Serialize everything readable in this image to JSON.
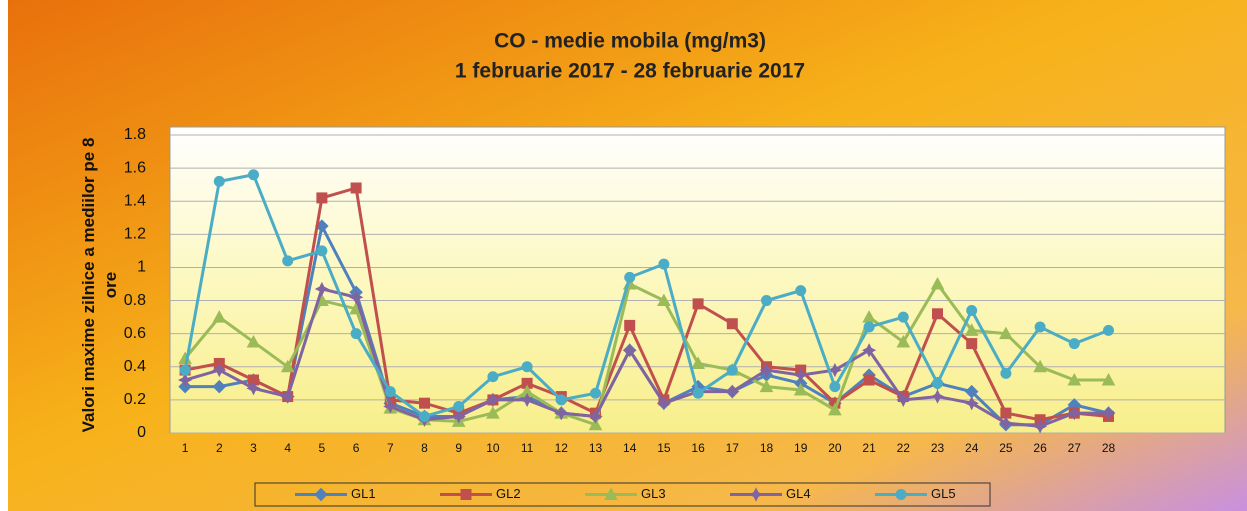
{
  "chart_data": {
    "type": "line",
    "title": "CO - medie mobila (mg/m3)",
    "subtitle": "1 februarie 2017 - 28 februarie 2017",
    "y_label": "Valori maxime zilnice a mediilor pe 8 ore",
    "categories": [
      "1",
      "2",
      "3",
      "4",
      "5",
      "6",
      "7",
      "8",
      "9",
      "10",
      "11",
      "12",
      "13",
      "14",
      "15",
      "16",
      "17",
      "18",
      "19",
      "20",
      "21",
      "22",
      "23",
      "24",
      "25",
      "26",
      "27",
      "28"
    ],
    "series": [
      {
        "name": "GL1",
        "color": "#4f81bd",
        "marker": "diamond",
        "values": [
          0.28,
          0.28,
          0.32,
          0.22,
          1.25,
          0.85,
          0.18,
          0.1,
          0.1,
          0.2,
          0.22,
          0.12,
          0.1,
          0.5,
          0.18,
          0.28,
          0.25,
          0.35,
          0.3,
          0.18,
          0.35,
          0.22,
          0.3,
          0.25,
          0.05,
          0.05,
          0.17,
          0.12
        ]
      },
      {
        "name": "GL2",
        "color": "#c0504d",
        "marker": "square",
        "values": [
          0.38,
          0.42,
          0.32,
          0.22,
          1.42,
          1.48,
          0.2,
          0.18,
          0.12,
          0.2,
          0.3,
          0.22,
          0.12,
          0.65,
          0.2,
          0.78,
          0.66,
          0.4,
          0.38,
          0.18,
          0.32,
          0.22,
          0.72,
          0.54,
          0.12,
          0.08,
          0.12,
          0.1
        ]
      },
      {
        "name": "GL3",
        "color": "#9bbb59",
        "marker": "triangle",
        "values": [
          0.45,
          0.7,
          0.55,
          0.4,
          0.8,
          0.75,
          0.15,
          0.08,
          0.07,
          0.12,
          0.25,
          0.12,
          0.05,
          0.9,
          0.8,
          0.42,
          0.38,
          0.28,
          0.26,
          0.14,
          0.7,
          0.55,
          0.9,
          0.62,
          0.6,
          0.4,
          0.32,
          0.32
        ]
      },
      {
        "name": "GL4",
        "color": "#8064a2",
        "marker": "star",
        "values": [
          0.32,
          0.38,
          0.27,
          0.22,
          0.87,
          0.82,
          0.16,
          0.08,
          0.1,
          0.2,
          0.2,
          0.12,
          0.1,
          0.5,
          0.18,
          0.25,
          0.25,
          0.38,
          0.35,
          0.38,
          0.5,
          0.2,
          0.22,
          0.18,
          0.06,
          0.04,
          0.12,
          0.12
        ]
      },
      {
        "name": "GL5",
        "color": "#4bacc6",
        "marker": "circle",
        "values": [
          0.38,
          1.52,
          1.56,
          1.04,
          1.1,
          0.6,
          0.25,
          0.1,
          0.16,
          0.34,
          0.4,
          0.2,
          0.24,
          0.94,
          1.02,
          0.24,
          0.38,
          0.8,
          0.86,
          0.28,
          0.64,
          0.7,
          0.3,
          0.74,
          0.36,
          0.64,
          0.54,
          0.62
        ]
      }
    ],
    "ylim": [
      0,
      1.8
    ],
    "yticks": [
      0,
      0.2,
      0.4,
      0.6,
      0.8,
      1,
      1.2,
      1.4,
      1.6,
      1.8
    ],
    "grid": true,
    "legend": "bottom"
  }
}
